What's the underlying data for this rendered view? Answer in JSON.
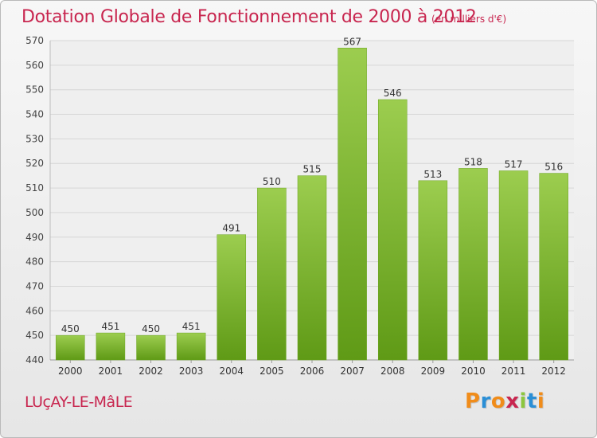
{
  "header": {
    "title": "Dotation Globale de Fonctionnement de 2000 à 2012",
    "unit_note": "(en milliers d'€)"
  },
  "footer": {
    "commune": "LUçAY-LE-MâLE",
    "logo_text": "Proxiti",
    "logo_colors": [
      "#f08c1a",
      "#2b8fd6",
      "#f08c1a",
      "#c8264f",
      "#8cc63f",
      "#2b8fd6",
      "#f08c1a"
    ]
  },
  "chart_data": {
    "type": "bar",
    "title": "Dotation Globale de Fonctionnement de 2000 à 2012",
    "xlabel": "",
    "ylabel": "",
    "categories": [
      "2000",
      "2001",
      "2002",
      "2003",
      "2004",
      "2005",
      "2006",
      "2007",
      "2008",
      "2009",
      "2010",
      "2011",
      "2012"
    ],
    "values": [
      450,
      451,
      450,
      451,
      491,
      510,
      515,
      567,
      546,
      513,
      518,
      517,
      516
    ],
    "ylim": [
      440,
      570
    ],
    "yticks": [
      440,
      450,
      460,
      470,
      480,
      490,
      500,
      510,
      520,
      530,
      540,
      550,
      560,
      570
    ],
    "grid": true,
    "bar_color": "#7fba2d"
  }
}
